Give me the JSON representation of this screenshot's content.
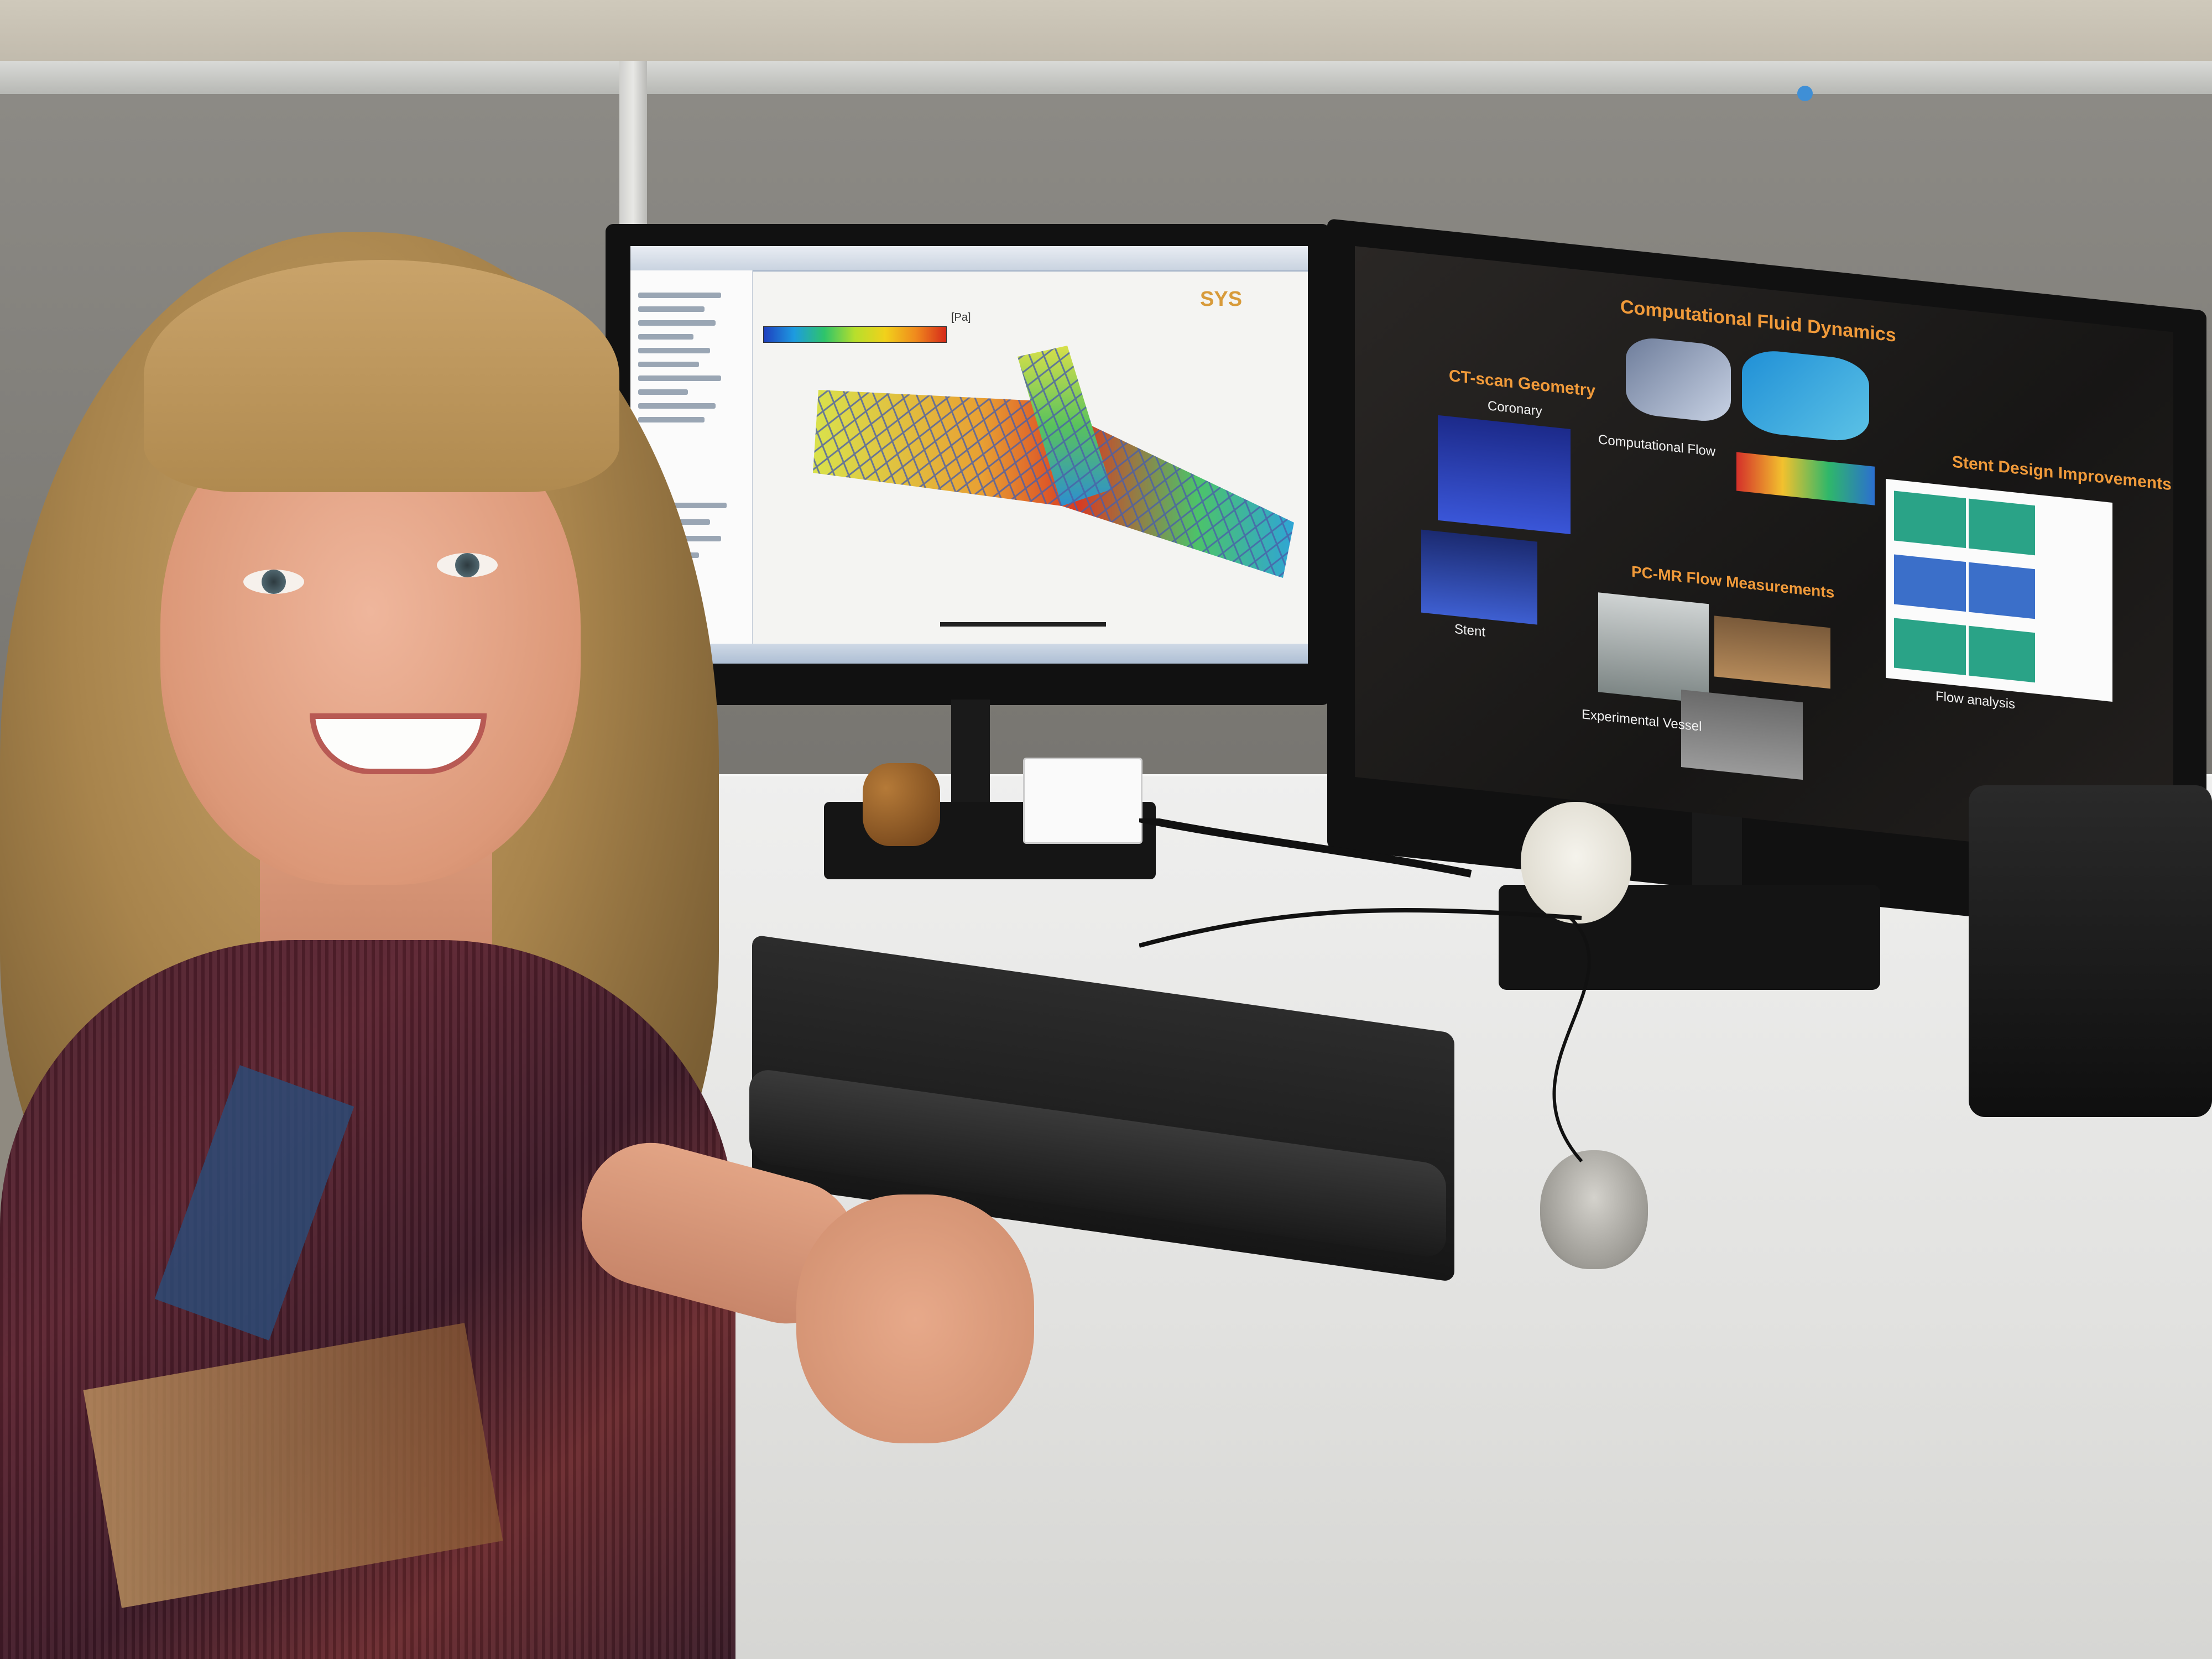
{
  "scene": {
    "description_label": ""
  },
  "left_monitor": {
    "app_brand": "SYS",
    "legend_unit": "[Pa]"
  },
  "right_monitor": {
    "slide_title": "Computational Fluid Dynamics",
    "ct_heading": "CT-scan Geometry",
    "ct_label_coronary": "Coronary",
    "ct_label_stent": "Stent",
    "cfd_label": "Computational Flow",
    "stent_heading": "Stent Design Improvements",
    "pcmr_heading": "PC-MR Flow Measurements",
    "pcmr_label": "Experimental Vessel",
    "flow_label": "Flow analysis"
  },
  "colors": {
    "slide_accent": "#f09a3a",
    "legend_low": "#1f3fbf",
    "legend_high": "#d62a1a"
  }
}
